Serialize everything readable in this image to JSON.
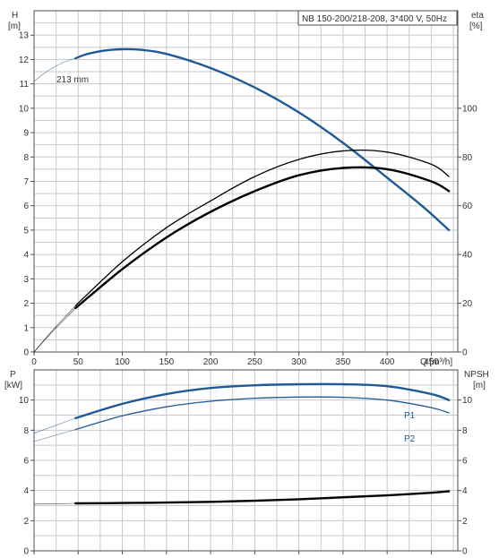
{
  "chart_data": [
    {
      "type": "line",
      "title": "NB 150-200/218-208, 3*400 V, 50Hz",
      "left_axis": {
        "label": [
          "H",
          "[m]"
        ],
        "ticks": [
          "0",
          "1",
          "2",
          "3",
          "4",
          "5",
          "6",
          "7",
          "8",
          "9",
          "10",
          "11",
          "12",
          "13"
        ],
        "ylim": [
          0,
          14
        ]
      },
      "right_axis": {
        "label": [
          "eta",
          "[%]"
        ],
        "ticks": [
          "0",
          "20",
          "40",
          "60",
          "80",
          "100"
        ],
        "ylim": [
          0,
          140
        ]
      },
      "x_axis": {
        "label": "Q [m³/h]",
        "ticks": [
          "0",
          "50",
          "100",
          "150",
          "200",
          "250",
          "300",
          "350",
          "400",
          "450"
        ],
        "xlim": [
          0,
          480
        ]
      },
      "grid": true,
      "series": [
        {
          "name": "213 mm",
          "axis": "left",
          "color": "#1f5a96",
          "x": [
            47,
            60,
            80,
            100,
            120,
            150,
            200,
            250,
            300,
            350,
            400,
            440,
            470
          ],
          "y": [
            12.05,
            12.22,
            12.37,
            12.42,
            12.4,
            12.23,
            11.65,
            10.85,
            9.83,
            8.58,
            7.15,
            5.98,
            5.0
          ]
        },
        {
          "axis": "right",
          "color": "#000000",
          "emphasis": "thin",
          "x": [
            47,
            100,
            150,
            200,
            250,
            300,
            350,
            400,
            450,
            470
          ],
          "y": [
            19,
            37,
            51,
            62,
            72,
            79,
            82.5,
            82,
            77,
            72
          ]
        },
        {
          "axis": "right",
          "color": "#000000",
          "emphasis": "thick",
          "x": [
            47,
            100,
            150,
            200,
            250,
            300,
            350,
            400,
            450,
            470
          ],
          "y": [
            18,
            34,
            47,
            57.5,
            66,
            72.5,
            75.5,
            75,
            70,
            66
          ]
        }
      ],
      "extrapolated_start": [
        {
          "series_index": 0,
          "x": [
            0,
            10,
            20,
            30,
            40,
            47
          ],
          "y": [
            11.1,
            11.39,
            11.63,
            11.83,
            11.97,
            12.05
          ]
        },
        {
          "series_index": 1,
          "x": [
            0,
            20,
            47
          ],
          "y": [
            0,
            8.5,
            19
          ]
        },
        {
          "series_index": 2,
          "x": [
            0,
            20,
            47
          ],
          "y": [
            0,
            8,
            18
          ]
        }
      ]
    },
    {
      "type": "line",
      "left_axis": {
        "label": [
          "P",
          "[kW]"
        ],
        "ticks": [
          "0",
          "2",
          "4",
          "6",
          "8",
          "10"
        ],
        "ylim": [
          0,
          12
        ]
      },
      "right_axis": {
        "label": [
          "NPSH",
          "[m]"
        ],
        "ticks": [
          "0",
          "2",
          "4",
          "6",
          "8",
          "10"
        ],
        "ylim": [
          0,
          12
        ]
      },
      "x_axis": {
        "xlim": [
          0,
          480
        ]
      },
      "grid": true,
      "series": [
        {
          "name": "P1",
          "axis": "left",
          "color": "#1f5a96",
          "emphasis": "thick",
          "x": [
            47,
            100,
            150,
            200,
            250,
            300,
            350,
            400,
            450,
            470
          ],
          "y": [
            8.8,
            9.75,
            10.4,
            10.8,
            10.98,
            11.05,
            11.05,
            10.92,
            10.4,
            10.0
          ]
        },
        {
          "name": "P2",
          "axis": "left",
          "color": "#1f5a96",
          "emphasis": "thin",
          "x": [
            47,
            100,
            150,
            200,
            250,
            300,
            350,
            400,
            450,
            470
          ],
          "y": [
            8.05,
            8.95,
            9.55,
            9.92,
            10.12,
            10.2,
            10.18,
            10.0,
            9.5,
            9.15
          ]
        },
        {
          "axis": "right",
          "color": "#000000",
          "emphasis": "thick",
          "x": [
            47,
            100,
            150,
            200,
            250,
            300,
            350,
            400,
            450,
            470
          ],
          "y": [
            3.15,
            3.17,
            3.2,
            3.25,
            3.32,
            3.42,
            3.55,
            3.68,
            3.85,
            3.95
          ]
        }
      ],
      "extrapolated_start": [
        {
          "series_index": 0,
          "x": [
            0,
            47
          ],
          "y": [
            7.8,
            8.8
          ]
        },
        {
          "series_index": 1,
          "x": [
            0,
            47
          ],
          "y": [
            7.25,
            8.05
          ]
        },
        {
          "series_index": 2,
          "x": [
            0,
            47
          ],
          "y": [
            3.1,
            3.15
          ]
        }
      ]
    }
  ]
}
